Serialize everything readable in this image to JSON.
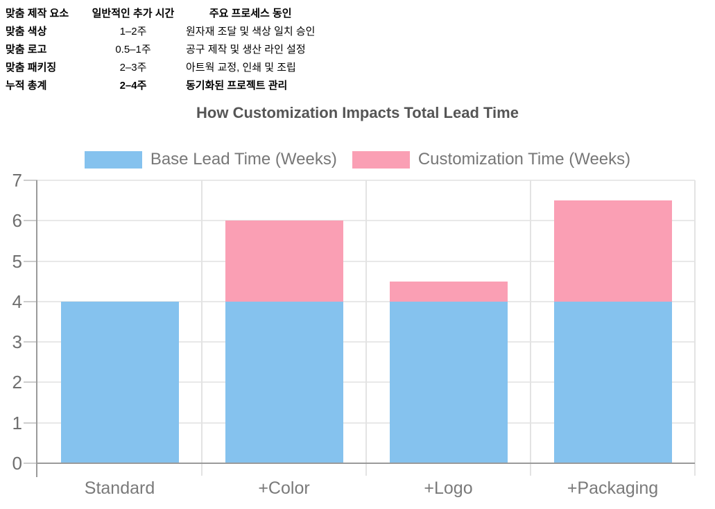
{
  "table": {
    "header": {
      "factor": "맞춤 제작 요소",
      "time": "일반적인 추가 시간",
      "driver": "주요 프로세스 동인"
    },
    "rows": [
      {
        "factor": "맞춤 색상",
        "time": "1–2주",
        "driver": "원자재 조달 및 색상 일치 승인",
        "emphasis": false
      },
      {
        "factor": "맞춤 로고",
        "time": "0.5–1주",
        "driver": "공구 제작 및 생산 라인 설정",
        "emphasis": false
      },
      {
        "factor": "맞춤 패키징",
        "time": "2–3주",
        "driver": "아트웍 교정, 인쇄 및 조립",
        "emphasis": false
      },
      {
        "factor": "누적 총계",
        "time": "2–4주",
        "driver": "동기화된 프로젝트 관리",
        "emphasis": true
      }
    ]
  },
  "chart_data": {
    "type": "bar",
    "stacked": true,
    "title": "How Customization Impacts Total Lead Time",
    "categories": [
      "Standard",
      "+Color",
      "+Logo",
      "+Packaging"
    ],
    "series": [
      {
        "name": "Base Lead Time (Weeks)",
        "color": "#85C2EE",
        "values": [
          4,
          4,
          4,
          4
        ]
      },
      {
        "name": "Customization Time (Weeks)",
        "color": "#FA9FB4",
        "values": [
          0,
          2,
          0.5,
          2.5
        ]
      }
    ],
    "xlabel": "",
    "ylabel": "",
    "ylim": [
      0,
      7
    ],
    "yticks": [
      0,
      1,
      2,
      3,
      4,
      5,
      6,
      7
    ],
    "grid": true,
    "legend_position": "top",
    "colors": {
      "axis": "#9a9a9a",
      "gridline": "#e8e8e8",
      "tick": "#cccccc",
      "title_text": "#555555",
      "legend_text": "#777777",
      "axis_label_text": "#6e6e6e"
    }
  }
}
